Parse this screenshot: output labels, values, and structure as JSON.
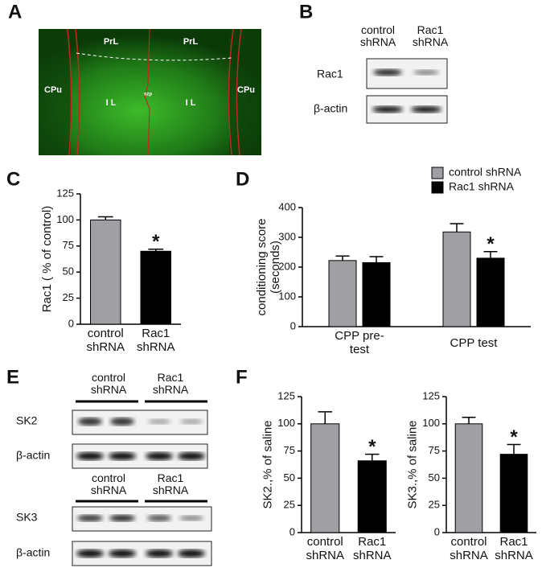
{
  "figure": {
    "A": {
      "label": "A",
      "regions": [
        "PrL",
        "PrL",
        "CPu",
        "CPu",
        "I L",
        "I L",
        "szp"
      ]
    },
    "B": {
      "label": "B",
      "columns": [
        "control shRNA",
        "Rac1 shRNA"
      ],
      "rows": [
        "Rac1",
        "β-actin"
      ]
    },
    "C": {
      "label": "C"
    },
    "D": {
      "label": "D"
    },
    "E": {
      "label": "E",
      "columns": [
        "control shRNA",
        "Rac1 shRNA"
      ],
      "rows": [
        "SK2",
        "β-actin"
      ],
      "columns_2": [
        "control shRNA",
        "Rac1 shRNA"
      ],
      "rows_2": [
        "SK3",
        "β-actin"
      ]
    },
    "F": {
      "label": "F"
    }
  },
  "chart_data": [
    {
      "type": "bar",
      "ylabel": "Rac1 ( % of control)",
      "categories": [
        "control shRNA",
        "Rac1 shRNA"
      ],
      "values": [
        100,
        70
      ],
      "errors": [
        3,
        2
      ],
      "colors": [
        "#a0a0a4",
        "#000000"
      ],
      "ylim": [
        0,
        125
      ],
      "yticks": [
        0,
        25,
        50,
        75,
        100,
        125
      ],
      "annotation": "*"
    },
    {
      "type": "bar",
      "ylabel": "conditioning score (seconds)",
      "categories": [
        "CPP pre-test",
        "CPP test"
      ],
      "series": [
        {
          "name": "control shRNA",
          "color": "#a0a0a4",
          "values": [
            222,
            318
          ],
          "errors": [
            15,
            28
          ]
        },
        {
          "name": "Rac1 shRNA",
          "color": "#000000",
          "values": [
            215,
            230
          ],
          "errors": [
            20,
            22
          ]
        }
      ],
      "ylim": [
        0,
        400
      ],
      "yticks": [
        0,
        100,
        200,
        300,
        400
      ],
      "legend": "top-right",
      "annotation": "*"
    },
    {
      "type": "bar",
      "ylabel": "SK2.,% of saline",
      "categories": [
        "control shRNA",
        "Rac1 shRNA"
      ],
      "values": [
        100,
        66
      ],
      "errors": [
        11,
        6
      ],
      "colors": [
        "#a0a0a4",
        "#000000"
      ],
      "ylim": [
        0,
        125
      ],
      "yticks": [
        0,
        25,
        50,
        75,
        100,
        125
      ],
      "annotation": "*"
    },
    {
      "type": "bar",
      "ylabel": "SK3.,% of saline",
      "categories": [
        "control shRNA",
        "Rac1 shRNA"
      ],
      "values": [
        100,
        72
      ],
      "errors": [
        6,
        9
      ],
      "colors": [
        "#a0a0a4",
        "#000000"
      ],
      "ylim": [
        0,
        125
      ],
      "yticks": [
        0,
        25,
        50,
        75,
        100,
        125
      ],
      "annotation": "*"
    }
  ]
}
